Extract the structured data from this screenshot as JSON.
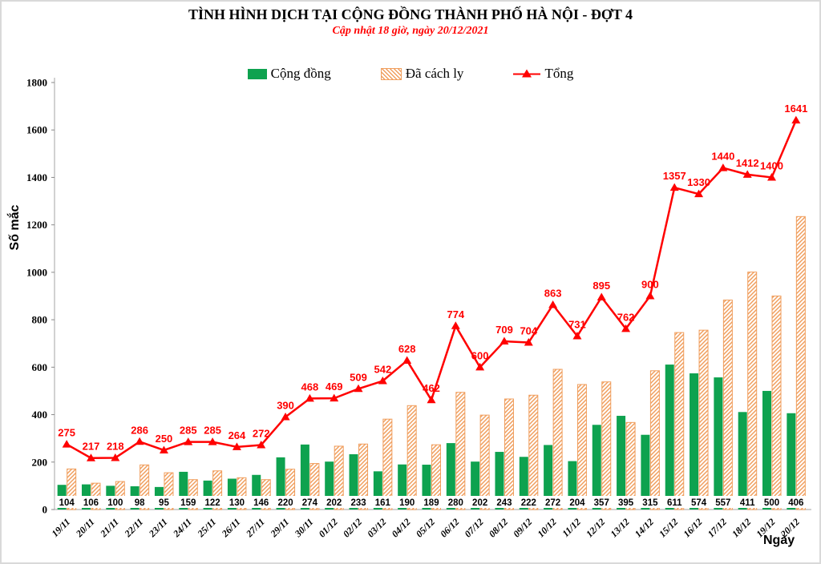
{
  "chart_data": {
    "type": "combo",
    "title": "TÌNH HÌNH DỊCH TẠI CỘNG ĐỒNG THÀNH PHỐ HÀ NỘI - ĐỢT 4",
    "subtitle": "Cập nhật 18 giờ, ngày 20/12/2021",
    "ylabel": "Số mắc",
    "xlabel": "Ngày",
    "ylim": [
      0,
      1800
    ],
    "ytick_step": 200,
    "grid": false,
    "legend_position": "top",
    "categories": [
      "19/11",
      "20/11",
      "21/11",
      "22/11",
      "23/11",
      "24/11",
      "25/11",
      "26/11",
      "27/11",
      "29/11",
      "30/11",
      "01/12",
      "02/12",
      "03/12",
      "04/12",
      "05/12",
      "06/12",
      "07/12",
      "08/12",
      "09/12",
      "10/12",
      "11/12",
      "12/12",
      "13/12",
      "14/12",
      "15/12",
      "16/12",
      "17/12",
      "18/12",
      "19/12",
      "20/12"
    ],
    "series": [
      {
        "name": "Cộng đồng",
        "type": "bar",
        "style": "solid",
        "color": "#0ea24f",
        "labels_shown": true,
        "values": [
          104,
          106,
          100,
          98,
          95,
          159,
          122,
          130,
          146,
          220,
          274,
          202,
          233,
          161,
          190,
          189,
          280,
          202,
          243,
          222,
          272,
          204,
          357,
          395,
          315,
          611,
          574,
          557,
          411,
          500,
          406
        ]
      },
      {
        "name": "Đã cách ly",
        "type": "bar",
        "style": "hatched",
        "color": "#f09e5d",
        "labels_shown": false,
        "values": [
          171,
          111,
          118,
          188,
          155,
          126,
          163,
          134,
          126,
          170,
          194,
          267,
          276,
          381,
          438,
          273,
          494,
          398,
          466,
          482,
          591,
          527,
          538,
          367,
          585,
          746,
          756,
          883,
          1001,
          900,
          1235
        ]
      },
      {
        "name": "Tổng",
        "type": "line",
        "marker": "triangle",
        "color": "#ff0000",
        "labels_shown": true,
        "values": [
          275,
          217,
          218,
          286,
          250,
          285,
          285,
          264,
          272,
          390,
          468,
          469,
          509,
          542,
          628,
          462,
          774,
          600,
          709,
          704,
          863,
          731,
          895,
          762,
          900,
          1357,
          1330,
          1440,
          1412,
          1400,
          1641
        ]
      }
    ],
    "colors": {
      "community_bar": "#0ea24f",
      "quarantine_hatch": "#f09e5d",
      "total_line": "#ff0000",
      "axis": "#c4c4c4",
      "subtitle_text": "#ff0000"
    }
  }
}
